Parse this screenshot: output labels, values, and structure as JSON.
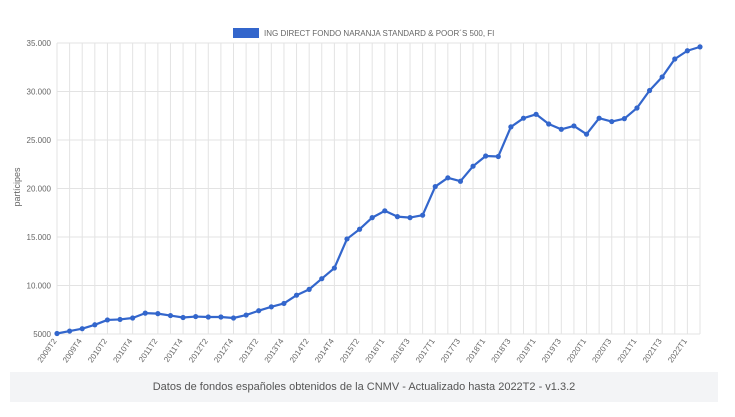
{
  "chart_data": {
    "type": "line",
    "title": "",
    "xlabel": "",
    "ylabel": "partícipes",
    "legend_position": "top",
    "grid": true,
    "ylim": [
      5000,
      35000
    ],
    "yticks": [
      5000,
      10000,
      15000,
      20000,
      25000,
      30000,
      35000
    ],
    "ytick_labels": [
      "5000",
      "10.000",
      "15.000",
      "20.000",
      "25.000",
      "30.000",
      "35.000"
    ],
    "x": [
      "2009T2",
      "2009T3",
      "2009T4",
      "2010T1",
      "2010T2",
      "2010T3",
      "2010T4",
      "2011T1",
      "2011T2",
      "2011T3",
      "2011T4",
      "2012T1",
      "2012T2",
      "2012T3",
      "2012T4",
      "2013T1",
      "2013T2",
      "2013T3",
      "2013T4",
      "2014T1",
      "2014T2",
      "2014T3",
      "2014T4",
      "2015T1",
      "2015T2",
      "2015T3",
      "2016T1",
      "2016T2",
      "2016T3",
      "2016T4",
      "2017T1",
      "2017T2",
      "2017T3",
      "2017T4",
      "2018T1",
      "2018T2",
      "2018T3",
      "2018T4",
      "2019T1",
      "2019T2",
      "2019T3",
      "2019T4",
      "2020T1",
      "2020T2",
      "2020T3",
      "2020T4",
      "2021T1",
      "2021T2",
      "2021T3",
      "2021T4",
      "2022T1",
      "2022T2"
    ],
    "xtick_labels": [
      "2009T2",
      "",
      "2009T4",
      "",
      "2010T2",
      "",
      "2010T4",
      "",
      "2011T2",
      "",
      "2011T4",
      "",
      "2012T2",
      "",
      "2012T4",
      "",
      "2013T2",
      "",
      "2013T4",
      "",
      "2014T2",
      "",
      "2014T4",
      "",
      "2015T2",
      "",
      "2016T1",
      "",
      "2016T3",
      "",
      "2017T1",
      "",
      "2017T3",
      "",
      "2018T1",
      "",
      "2018T3",
      "",
      "2019T1",
      "",
      "2019T3",
      "",
      "2020T1",
      "",
      "2020T3",
      "",
      "2021T1",
      "",
      "2021T3",
      "",
      "2022T1",
      ""
    ],
    "series": [
      {
        "name": "ING DIRECT FONDO NARANJA STANDARD & POOR´S 500, FI",
        "color": "#3366cc",
        "values": [
          5050,
          5300,
          5550,
          5950,
          6450,
          6500,
          6650,
          7150,
          7100,
          6900,
          6700,
          6800,
          6750,
          6750,
          6650,
          6950,
          7400,
          7800,
          8150,
          9000,
          9600,
          10700,
          11800,
          14800,
          15800,
          17000,
          17700,
          17100,
          17000,
          17250,
          20200,
          21100,
          20750,
          22300,
          23350,
          23300,
          26350,
          27250,
          27650,
          26650,
          26100,
          26450,
          25600,
          27250,
          26900,
          27200,
          28300,
          30100,
          31500,
          33350,
          34200,
          34600
        ]
      }
    ]
  },
  "footer": {
    "text": "Datos de fondos españoles obtenidos de la CNMV - Actualizado hasta 2022T2 - v1.3.2"
  }
}
